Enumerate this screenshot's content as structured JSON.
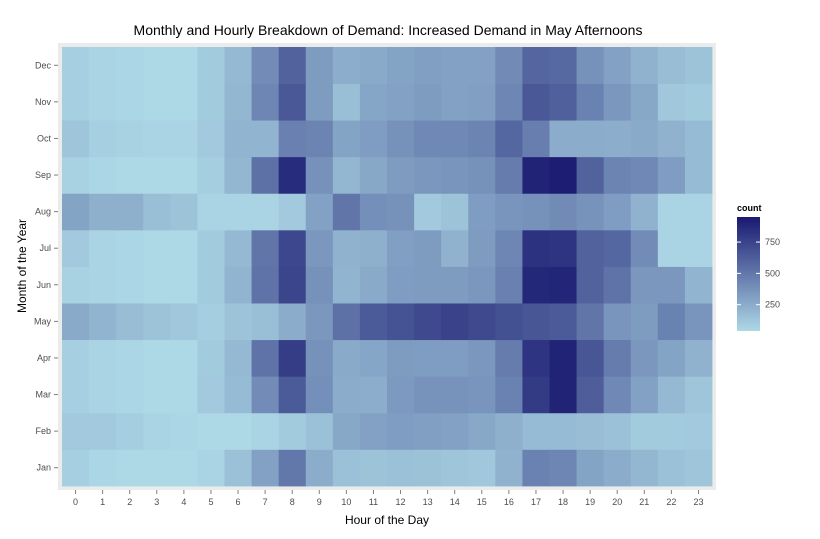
{
  "chart_data": {
    "type": "heatmap",
    "title": "Monthly and Hourly Breakdown of Demand: Increased Demand in May Afternoons",
    "xlabel": "Hour of the Day",
    "ylabel": "Month of the Year",
    "x_categories": [
      "0",
      "1",
      "2",
      "3",
      "4",
      "5",
      "6",
      "7",
      "8",
      "9",
      "10",
      "11",
      "12",
      "13",
      "14",
      "15",
      "16",
      "17",
      "18",
      "19",
      "20",
      "21",
      "22",
      "23"
    ],
    "y_categories": [
      "Jan",
      "Feb",
      "Mar",
      "Apr",
      "May",
      "Jun",
      "Jul",
      "Aug",
      "Sep",
      "Oct",
      "Nov",
      "Dec"
    ],
    "values": [
      [
        80,
        50,
        40,
        30,
        25,
        60,
        150,
        300,
        500,
        250,
        150,
        140,
        150,
        145,
        130,
        120,
        220,
        450,
        430,
        290,
        250,
        200,
        150,
        130
      ],
      [
        110,
        110,
        90,
        60,
        50,
        40,
        40,
        60,
        100,
        150,
        270,
        300,
        320,
        310,
        300,
        270,
        230,
        180,
        180,
        170,
        150,
        100,
        100,
        110
      ],
      [
        80,
        60,
        50,
        40,
        40,
        110,
        180,
        400,
        640,
        390,
        250,
        240,
        340,
        370,
        370,
        360,
        450,
        790,
        900,
        620,
        420,
        300,
        190,
        130
      ],
      [
        80,
        60,
        50,
        40,
        40,
        100,
        190,
        520,
        780,
        380,
        260,
        280,
        330,
        320,
        320,
        350,
        480,
        820,
        900,
        660,
        480,
        350,
        290,
        220
      ],
      [
        260,
        210,
        170,
        140,
        120,
        90,
        140,
        160,
        250,
        350,
        530,
        640,
        680,
        720,
        750,
        720,
        690,
        660,
        640,
        510,
        360,
        330,
        450,
        360
      ],
      [
        70,
        60,
        50,
        40,
        40,
        100,
        210,
        520,
        740,
        380,
        210,
        260,
        320,
        330,
        330,
        350,
        460,
        880,
        890,
        600,
        520,
        350,
        350,
        210
      ],
      [
        110,
        60,
        50,
        40,
        40,
        100,
        190,
        510,
        730,
        350,
        220,
        230,
        310,
        330,
        220,
        330,
        430,
        830,
        820,
        600,
        580,
        400,
        60,
        60
      ],
      [
        290,
        230,
        230,
        160,
        140,
        60,
        60,
        60,
        110,
        300,
        510,
        390,
        380,
        110,
        140,
        320,
        360,
        380,
        410,
        370,
        320,
        220,
        60,
        60
      ],
      [
        70,
        50,
        40,
        40,
        40,
        90,
        200,
        530,
        860,
        380,
        200,
        270,
        330,
        350,
        360,
        380,
        480,
        900,
        930,
        600,
        440,
        420,
        320,
        180
      ],
      [
        130,
        80,
        70,
        60,
        60,
        110,
        210,
        210,
        460,
        440,
        290,
        320,
        380,
        420,
        420,
        440,
        580,
        470,
        250,
        250,
        240,
        260,
        220,
        180
      ],
      [
        80,
        60,
        50,
        40,
        40,
        100,
        200,
        430,
        650,
        330,
        160,
        280,
        300,
        330,
        300,
        310,
        430,
        650,
        610,
        450,
        350,
        270,
        120,
        100
      ],
      [
        80,
        60,
        50,
        40,
        40,
        100,
        190,
        400,
        600,
        330,
        240,
        260,
        290,
        310,
        300,
        300,
        410,
        590,
        570,
        380,
        300,
        220,
        170,
        140
      ]
    ],
    "color_scale": {
      "low": "#add8e6",
      "high": "#191970",
      "min": 40,
      "max": 950
    },
    "legend": {
      "title": "count",
      "ticks": [
        250,
        500,
        750
      ],
      "placement": "right"
    },
    "grid": true
  }
}
